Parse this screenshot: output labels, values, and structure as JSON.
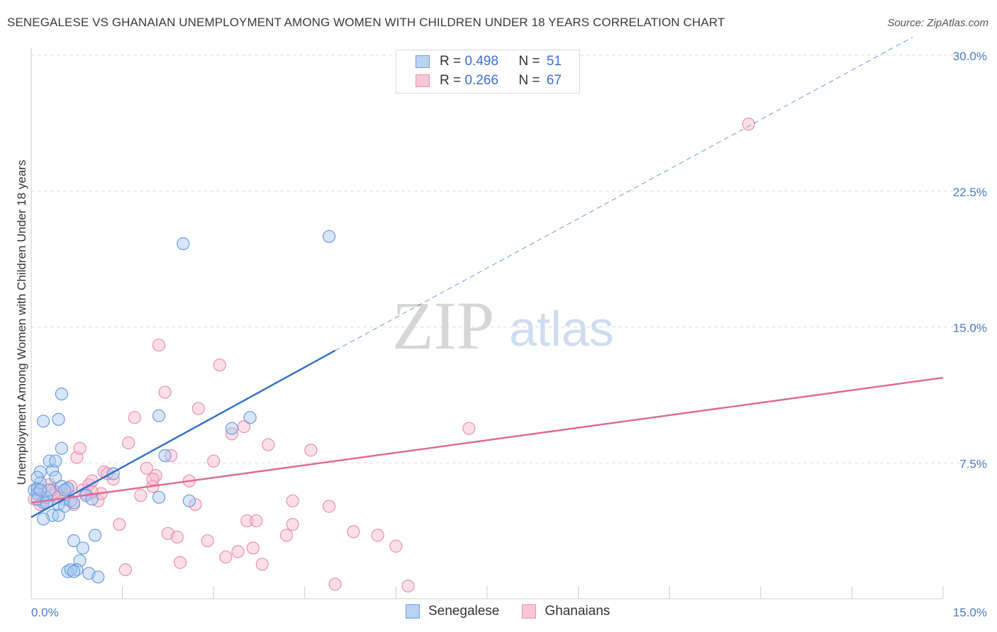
{
  "title": "SENEGALESE VS GHANAIAN UNEMPLOYMENT AMONG WOMEN WITH CHILDREN UNDER 18 YEARS CORRELATION CHART",
  "source": "Source: ZipAtlas.com",
  "watermark": {
    "zip": "ZIP",
    "atlas": "atlas"
  },
  "legend": {
    "rows": [
      {
        "r_label": "R =",
        "r_value": "0.498",
        "n_label": "N =",
        "n_value": "51"
      },
      {
        "r_label": "R =",
        "r_value": "0.266",
        "n_label": "N =",
        "n_value": "67"
      }
    ]
  },
  "bottom_legend": {
    "senegalese": "Senegalese",
    "ghanaians": "Ghanaians"
  },
  "colors": {
    "blue_fill": "#a8c8f0",
    "blue_stroke": "#6a9ee0",
    "blue_line": "#2f6fce",
    "pink_fill": "#f7b8cc",
    "pink_stroke": "#ec8fae",
    "pink_line": "#e0688f",
    "tick": "#4a7cc7"
  },
  "chart_data": {
    "type": "scatter",
    "title": "SENEGALESE VS GHANAIAN UNEMPLOYMENT AMONG WOMEN WITH CHILDREN UNDER 18 YEARS CORRELATION CHART",
    "xlabel": "",
    "ylabel": "Unemployment Among Women with Children Under 18 years",
    "xlim": [
      0,
      15
    ],
    "ylim": [
      0,
      30
    ],
    "x_ticks": [
      0,
      1.5,
      3,
      4.5,
      6,
      7.5,
      9,
      10.5,
      12,
      13.5,
      15
    ],
    "x_tick_labels": [
      "0.0%",
      "15.0%"
    ],
    "y_ticks": [
      7.5,
      15,
      22.5,
      30
    ],
    "y_tick_labels": [
      "7.5%",
      "15.0%",
      "22.5%",
      "30.0%"
    ],
    "series": [
      {
        "name": "Senegalese",
        "r": 0.498,
        "n": 51,
        "trend": {
          "x0": 0,
          "y0": 4.5,
          "x1": 5.0,
          "y1": 13.7,
          "dash_to_x": 14.5,
          "dash_to_y": 31.0
        },
        "points": [
          [
            0.05,
            6.0
          ],
          [
            0.1,
            6.1
          ],
          [
            0.15,
            6.4
          ],
          [
            0.1,
            5.8
          ],
          [
            0.2,
            5.3
          ],
          [
            0.25,
            5.6
          ],
          [
            0.3,
            6.0
          ],
          [
            0.35,
            7.1
          ],
          [
            0.4,
            6.7
          ],
          [
            0.45,
            5.2
          ],
          [
            0.35,
            4.6
          ],
          [
            0.2,
            4.4
          ],
          [
            0.15,
            7.0
          ],
          [
            0.1,
            6.7
          ],
          [
            0.3,
            7.6
          ],
          [
            0.5,
            6.2
          ],
          [
            0.55,
            5.1
          ],
          [
            0.6,
            6.1
          ],
          [
            0.65,
            5.4
          ],
          [
            0.7,
            5.3
          ],
          [
            0.4,
            7.6
          ],
          [
            0.45,
            4.6
          ],
          [
            0.5,
            8.3
          ],
          [
            0.5,
            11.3
          ],
          [
            0.45,
            9.9
          ],
          [
            0.2,
            9.8
          ],
          [
            0.9,
            5.7
          ],
          [
            1.0,
            5.5
          ],
          [
            1.35,
            6.9
          ],
          [
            1.05,
            3.5
          ],
          [
            0.85,
            2.8
          ],
          [
            0.7,
            3.2
          ],
          [
            0.95,
            1.4
          ],
          [
            1.1,
            1.2
          ],
          [
            0.8,
            2.1
          ],
          [
            0.75,
            1.6
          ],
          [
            0.6,
            1.5
          ],
          [
            0.65,
            1.6
          ],
          [
            0.7,
            1.5
          ],
          [
            2.1,
            10.1
          ],
          [
            2.2,
            7.9
          ],
          [
            2.1,
            5.6
          ],
          [
            2.6,
            5.4
          ],
          [
            2.5,
            19.6
          ],
          [
            3.3,
            9.4
          ],
          [
            3.6,
            10.0
          ],
          [
            4.9,
            20.0
          ],
          [
            0.1,
            5.5
          ],
          [
            0.25,
            5.3
          ],
          [
            0.15,
            6.0
          ],
          [
            0.55,
            6.0
          ]
        ]
      },
      {
        "name": "Ghanaians",
        "r": 0.266,
        "n": 67,
        "trend": {
          "x0": 0,
          "y0": 5.3,
          "x1": 15,
          "y1": 12.2
        },
        "points": [
          [
            0.05,
            5.5
          ],
          [
            0.1,
            6.0
          ],
          [
            0.2,
            5.4
          ],
          [
            0.3,
            6.3
          ],
          [
            0.4,
            5.9
          ],
          [
            0.5,
            5.8
          ],
          [
            0.6,
            6.1
          ],
          [
            0.7,
            5.2
          ],
          [
            0.75,
            7.8
          ],
          [
            0.8,
            8.3
          ],
          [
            0.85,
            6.0
          ],
          [
            0.95,
            6.3
          ],
          [
            1.0,
            6.5
          ],
          [
            1.1,
            5.4
          ],
          [
            1.15,
            5.8
          ],
          [
            1.2,
            7.0
          ],
          [
            1.35,
            6.6
          ],
          [
            1.45,
            4.1
          ],
          [
            1.6,
            8.6
          ],
          [
            1.7,
            10.0
          ],
          [
            1.8,
            5.7
          ],
          [
            1.9,
            7.2
          ],
          [
            2.0,
            6.2
          ],
          [
            2.1,
            14.0
          ],
          [
            2.2,
            11.4
          ],
          [
            2.25,
            3.6
          ],
          [
            2.4,
            3.4
          ],
          [
            2.45,
            2.0
          ],
          [
            2.6,
            6.5
          ],
          [
            2.7,
            5.2
          ],
          [
            2.75,
            10.5
          ],
          [
            2.9,
            3.2
          ],
          [
            3.0,
            7.6
          ],
          [
            3.1,
            12.9
          ],
          [
            3.2,
            2.3
          ],
          [
            3.3,
            9.1
          ],
          [
            3.4,
            2.6
          ],
          [
            3.5,
            9.5
          ],
          [
            3.55,
            4.3
          ],
          [
            3.65,
            2.8
          ],
          [
            3.7,
            4.3
          ],
          [
            3.8,
            1.9
          ],
          [
            3.9,
            8.5
          ],
          [
            4.2,
            3.5
          ],
          [
            4.3,
            5.4
          ],
          [
            4.3,
            4.1
          ],
          [
            4.6,
            8.2
          ],
          [
            4.9,
            5.1
          ],
          [
            5.0,
            0.8
          ],
          [
            5.3,
            3.7
          ],
          [
            5.7,
            3.5
          ],
          [
            6.0,
            2.9
          ],
          [
            6.2,
            0.7
          ],
          [
            7.2,
            9.4
          ],
          [
            11.8,
            26.2
          ],
          [
            0.35,
            6.0
          ],
          [
            0.45,
            5.6
          ],
          [
            0.9,
            5.8
          ],
          [
            1.25,
            6.9
          ],
          [
            1.55,
            1.6
          ],
          [
            2.05,
            6.8
          ],
          [
            2.3,
            7.9
          ],
          [
            0.65,
            6.2
          ],
          [
            0.15,
            5.2
          ],
          [
            0.55,
            5.5
          ],
          [
            1.0,
            5.9
          ],
          [
            2.0,
            6.6
          ]
        ]
      }
    ]
  }
}
